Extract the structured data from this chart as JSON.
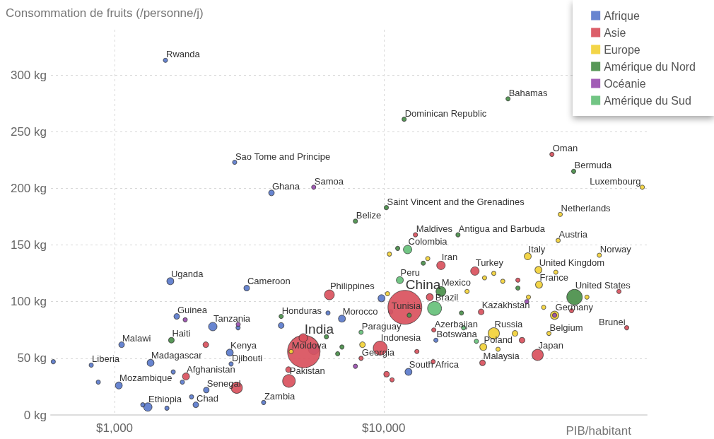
{
  "chart_data": {
    "type": "bubble",
    "ylabel": "Consommation de fruits (/personne/j)",
    "xlabel": "PIB/habitant",
    "log": "x",
    "grid": true,
    "legend": "top right",
    "marker": "circle",
    "xlim": [
      580,
      95000
    ],
    "xticks": [
      {
        "value": 1000,
        "label": "$1,000"
      },
      {
        "value": 10000,
        "label": "$10,000"
      }
    ],
    "ylim": [
      0,
      340
    ],
    "yticks": [
      {
        "value": 0,
        "label": "0 kg"
      },
      {
        "value": 50,
        "label": "50 kg"
      },
      {
        "value": 100,
        "label": "100 kg"
      },
      {
        "value": 150,
        "label": "150 kg"
      },
      {
        "value": 200,
        "label": "200 kg"
      },
      {
        "value": 250,
        "label": "250 kg"
      },
      {
        "value": 300,
        "label": "300 kg"
      }
    ],
    "series": [
      {
        "name": "Afrique",
        "color": "#5b7bcc",
        "x": [
          1545,
          2794,
          3828,
          1611,
          3097,
          1702,
          2317,
          1062,
          819,
          1361,
          1037,
          1329,
          2004,
          2680,
          2710,
          2192,
          3580,
          6996,
          10620,
          12360,
          15630,
          5495,
          592,
          870,
          1652,
          1786,
          1565,
          1932,
          2877,
          4159,
          6209,
          9815,
          1273
        ],
        "values": [
          313,
          223,
          196,
          118,
          112,
          87,
          78,
          62,
          44,
          46,
          26,
          7,
          9,
          55,
          45,
          22,
          11,
          85,
          91,
          38,
          66,
          58,
          47,
          29,
          38,
          29,
          6,
          16,
          77,
          79,
          90,
          103,
          9
        ],
        "sizes": [
          0.016,
          0.016,
          0.028,
          0.043,
          0.028,
          0.028,
          0.0625,
          0.028,
          0.016,
          0.043,
          0.043,
          0.0625,
          0.028,
          0.043,
          0.016,
          0.028,
          0.016,
          0.043,
          0.016,
          0.043,
          0.016,
          0.1,
          0.016,
          0.016,
          0.016,
          0.016,
          0.016,
          0.016,
          0.016,
          0.028,
          0.016,
          0.043,
          0.016
        ]
      },
      {
        "name": "Asie",
        "color": "#d9515d",
        "x": [
          5050,
          11990,
          4446,
          9705,
          6283,
          16320,
          21820,
          23020,
          23290,
          37330,
          42170,
          79980,
          13120,
          1842,
          15350,
          8240,
          2844,
          5025,
          2183,
          4429,
          10250,
          10740,
          14830,
          13280,
          15270,
          32660,
          31520,
          49900,
          74820
        ],
        "values": [
          56,
          95,
          30,
          59,
          106,
          132,
          127,
          91,
          46,
          53,
          230,
          77,
          159,
          34,
          75,
          50,
          24,
          68,
          62,
          40,
          36,
          31,
          104,
          56,
          47,
          66,
          119,
          92,
          109
        ],
        "sizes": [
          0.92,
          1,
          0.14,
          0.17,
          0.085,
          0.0625,
          0.0625,
          0.028,
          0.028,
          0.11,
          0.016,
          0.016,
          0.016,
          0.043,
          0.016,
          0.016,
          0.11,
          0.0625,
          0.028,
          0.028,
          0.028,
          0.016,
          0.043,
          0.016,
          0.016,
          0.028,
          0.016,
          0.016,
          0.016
        ]
      },
      {
        "name": "Europe",
        "color": "#f2d138",
        "x": [
          91400,
          45290,
          44480,
          34290,
          37580,
          37760,
          63260,
          43150,
          41110,
          25650,
          23440,
          4529,
          8340,
          30750,
          23700,
          25650,
          27700,
          34500,
          39300,
          56900,
          43600,
          26600,
          10500,
          14580,
          10330,
          20400
        ],
        "values": [
          201,
          177,
          154,
          140,
          128,
          115,
          141,
          88,
          72,
          72,
          60,
          56,
          62,
          72,
          121,
          125,
          118,
          104,
          95,
          104,
          126,
          58,
          142,
          138,
          107,
          109
        ],
        "sizes": [
          0.016,
          0.016,
          0.016,
          0.043,
          0.043,
          0.043,
          0.016,
          0.06,
          0.016,
          0.11,
          0.043,
          0.016,
          0.028,
          0.028,
          0.016,
          0.016,
          0.016,
          0.016,
          0.016,
          0.016,
          0.016,
          0.016,
          0.016,
          0.016,
          0.016,
          0.016
        ]
      },
      {
        "name": "Amérique du Nord",
        "color": "#4a8f4a",
        "x": [
          11910,
          28970,
          50800,
          10230,
          7850,
          18880,
          16320,
          51170,
          1626,
          4159,
          6996,
          6745,
          11270,
          14030,
          12440,
          19450,
          31520,
          6124
        ],
        "values": [
          261,
          279,
          215,
          183,
          171,
          159,
          109,
          104,
          66,
          87,
          60,
          54,
          147,
          134,
          88,
          90,
          112,
          69
        ],
        "sizes": [
          0.016,
          0.016,
          0.016,
          0.016,
          0.016,
          0.016,
          0.085,
          0.21,
          0.028,
          0.016,
          0.016,
          0.016,
          0.016,
          0.016,
          0.016,
          0.016,
          0.016,
          0.016
        ]
      },
      {
        "name": "Océanie",
        "color": "#9a4fb0",
        "x": [
          5495,
          1830,
          2880,
          7850,
          43150,
          34000
        ],
        "values": [
          201,
          84,
          80,
          43,
          88,
          100
        ],
        "sizes": [
          0.016,
          0.016,
          0.016,
          0.016,
          0.016,
          0.016
        ]
      },
      {
        "name": "Amérique du Sud",
        "color": "#66c07a",
        "x": [
          12270,
          11480,
          15450,
          8240,
          19800,
          22100
        ],
        "values": [
          146,
          119,
          94,
          73,
          77,
          65
        ],
        "sizes": [
          0.0625,
          0.043,
          0.17,
          0.016,
          0.016,
          0.016
        ]
      }
    ],
    "annotations": [
      {
        "text": "Rwanda",
        "x": 1545,
        "y": 313
      },
      {
        "text": "Sao Tome and Principe",
        "x": 2794,
        "y": 223
      },
      {
        "text": "Ghana",
        "x": 3828,
        "y": 196
      },
      {
        "text": "Uganda",
        "x": 1611,
        "y": 118
      },
      {
        "text": "Cameroon",
        "x": 3097,
        "y": 112
      },
      {
        "text": "Guinea",
        "x": 1702,
        "y": 87
      },
      {
        "text": "Tanzania",
        "x": 2317,
        "y": 78
      },
      {
        "text": "Malawi",
        "x": 1062,
        "y": 62
      },
      {
        "text": "Liberia",
        "x": 819,
        "y": 44
      },
      {
        "text": "Madagascar",
        "x": 1361,
        "y": 46
      },
      {
        "text": "Mozambique",
        "x": 1037,
        "y": 26
      },
      {
        "text": "Ethiopia",
        "x": 1329,
        "y": 7
      },
      {
        "text": "Chad",
        "x": 2004,
        "y": 9
      },
      {
        "text": "Kenya",
        "x": 2680,
        "y": 55
      },
      {
        "text": "Djibouti",
        "x": 2710,
        "y": 45
      },
      {
        "text": "Senegal",
        "x": 2192,
        "y": 22
      },
      {
        "text": "Zambia",
        "x": 3580,
        "y": 11
      },
      {
        "text": "Morocco",
        "x": 6996,
        "y": 85
      },
      {
        "text": "Tunisia",
        "x": 10620,
        "y": 91
      },
      {
        "text": "South Africa",
        "x": 12360,
        "y": 38
      },
      {
        "text": "Botswana",
        "x": 15630,
        "y": 66
      },
      {
        "text": "India",
        "x": 5050,
        "y": 56
      },
      {
        "text": "China",
        "x": 11990,
        "y": 95
      },
      {
        "text": "Pakistan",
        "x": 4446,
        "y": 30
      },
      {
        "text": "Indonesia",
        "x": 9705,
        "y": 59
      },
      {
        "text": "Philippines",
        "x": 6283,
        "y": 106
      },
      {
        "text": "Iran",
        "x": 16320,
        "y": 132
      },
      {
        "text": "Turkey",
        "x": 21820,
        "y": 127
      },
      {
        "text": "Kazakhstan",
        "x": 23020,
        "y": 91
      },
      {
        "text": "Malaysia",
        "x": 23290,
        "y": 46
      },
      {
        "text": "Japan",
        "x": 37330,
        "y": 53
      },
      {
        "text": "Oman",
        "x": 42170,
        "y": 230
      },
      {
        "text": "Brunei",
        "x": 79980,
        "y": 77
      },
      {
        "text": "Maldives",
        "x": 13120,
        "y": 159
      },
      {
        "text": "Afghanistan",
        "x": 1842,
        "y": 34
      },
      {
        "text": "Azerbaijan",
        "x": 15350,
        "y": 75
      },
      {
        "text": "Georgia",
        "x": 8240,
        "y": 50
      },
      {
        "text": "Luxembourg",
        "x": 91400,
        "y": 201
      },
      {
        "text": "Netherlands",
        "x": 45290,
        "y": 177
      },
      {
        "text": "Austria",
        "x": 44480,
        "y": 154
      },
      {
        "text": "Italy",
        "x": 34290,
        "y": 140
      },
      {
        "text": "United Kingdom",
        "x": 37580,
        "y": 128
      },
      {
        "text": "France",
        "x": 37760,
        "y": 115
      },
      {
        "text": "Norway",
        "x": 63260,
        "y": 141
      },
      {
        "text": "Germany",
        "x": 43150,
        "y": 88
      },
      {
        "text": "Belgium",
        "x": 41110,
        "y": 72
      },
      {
        "text": "Russia",
        "x": 25650,
        "y": 72
      },
      {
        "text": "Poland",
        "x": 23440,
        "y": 60
      },
      {
        "text": "Moldova",
        "x": 4529,
        "y": 56
      },
      {
        "text": "Dominican Republic",
        "x": 11910,
        "y": 261
      },
      {
        "text": "Bahamas",
        "x": 28970,
        "y": 279
      },
      {
        "text": "Bermuda",
        "x": 50800,
        "y": 215
      },
      {
        "text": "Saint Vincent and the Grenadines",
        "x": 10230,
        "y": 183
      },
      {
        "text": "Belize",
        "x": 7850,
        "y": 171
      },
      {
        "text": "Antigua and Barbuda",
        "x": 18880,
        "y": 159
      },
      {
        "text": "Mexico",
        "x": 16320,
        "y": 109
      },
      {
        "text": "United States",
        "x": 51170,
        "y": 104
      },
      {
        "text": "Haiti",
        "x": 1626,
        "y": 66
      },
      {
        "text": "Honduras",
        "x": 4159,
        "y": 87
      },
      {
        "text": "Samoa",
        "x": 5495,
        "y": 201
      },
      {
        "text": "Colombia",
        "x": 12270,
        "y": 146
      },
      {
        "text": "Peru",
        "x": 11480,
        "y": 119
      },
      {
        "text": "Brazil",
        "x": 15450,
        "y": 94
      },
      {
        "text": "Paraguay",
        "x": 8240,
        "y": 73
      }
    ]
  }
}
